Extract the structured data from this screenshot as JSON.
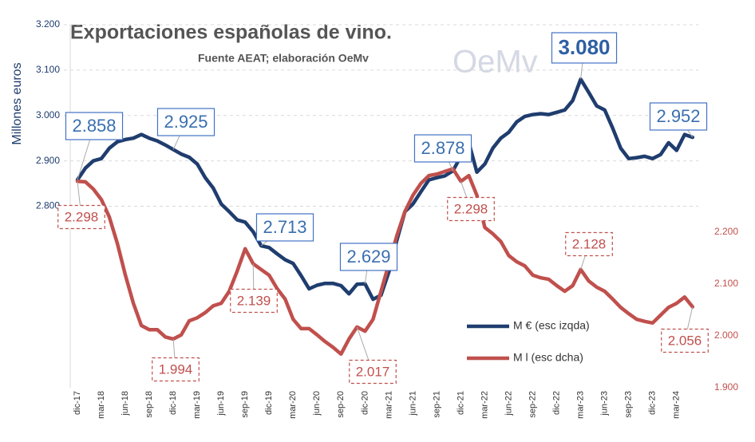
{
  "chart_data": {
    "type": "line",
    "title": "Exportaciones  españolas de vino.",
    "subtitle": "Fuente AEAT; elaboración OeMv",
    "logo": "OeMv",
    "y_label": "Millones euros",
    "categories": [
      "dic-17",
      null,
      null,
      "mar-18",
      null,
      null,
      "jun-18",
      null,
      null,
      "sep-18",
      null,
      null,
      "dic-18",
      null,
      null,
      "mar-19",
      null,
      null,
      "jun-19",
      null,
      null,
      "sep-19",
      null,
      null,
      "dic-19",
      null,
      null,
      "mar-20",
      null,
      null,
      "jun-20",
      null,
      null,
      "sep-20",
      null,
      null,
      "dic-20",
      null,
      null,
      "mar-21",
      null,
      null,
      "jun-21",
      null,
      null,
      "sep-21",
      null,
      null,
      "dic-21",
      null,
      null,
      "mar-22",
      null,
      null,
      "jun-22",
      null,
      null,
      "sep-22",
      null,
      null,
      "dic-22",
      null,
      null,
      "mar-23",
      null,
      null,
      "jun-23",
      null,
      null,
      "sep-23",
      null,
      null,
      "dic-23",
      null,
      null,
      "mar-24",
      null,
      null
    ],
    "series": [
      {
        "name": "M € (esc izqda)",
        "color": "#1f3d6e",
        "axis": "y",
        "values": [
          2858,
          2884,
          2900,
          2905,
          2928,
          2942,
          2947,
          2950,
          2958,
          2950,
          2944,
          2935,
          2925,
          2915,
          2908,
          2893,
          2863,
          2840,
          2805,
          2788,
          2770,
          2765,
          2744,
          2713,
          2709,
          2695,
          2682,
          2674,
          2647,
          2618,
          2626,
          2630,
          2630,
          2625,
          2607,
          2628,
          2629,
          2595,
          2604,
          2656,
          2726,
          2788,
          2805,
          2832,
          2858,
          2863,
          2867,
          2878,
          2910,
          2940,
          2875,
          2893,
          2928,
          2950,
          2963,
          2986,
          2998,
          3002,
          3004,
          3002,
          3007,
          3012,
          3033,
          3080,
          3051,
          3021,
          3012,
          2972,
          2928,
          2905,
          2907,
          2910,
          2905,
          2914,
          2940,
          2923,
          2958,
          2952
        ],
        "value_labels": [
          "2.858",
          null,
          null,
          null,
          null,
          null,
          null,
          null,
          null,
          null,
          null,
          null,
          "2.925",
          null,
          null,
          null,
          null,
          null,
          null,
          null,
          null,
          null,
          null,
          "2.713",
          null,
          null,
          null,
          null,
          null,
          null,
          null,
          null,
          null,
          null,
          null,
          null,
          "2.629",
          null,
          null,
          null,
          null,
          null,
          null,
          null,
          null,
          null,
          null,
          "2.878",
          null,
          null,
          null,
          null,
          null,
          null,
          null,
          null,
          null,
          null,
          null,
          null,
          null,
          null,
          null,
          "3.080",
          null,
          null,
          null,
          null,
          null,
          null,
          null,
          null,
          null,
          null,
          null,
          null,
          null,
          "2.952"
        ]
      },
      {
        "name": "M l (esc dcha)",
        "color": "#c0504d",
        "axis": "y2",
        "values": [
          2298,
          2297,
          2283,
          2263,
          2229,
          2178,
          2117,
          2063,
          2020,
          2012,
          2012,
          1998,
          1994,
          2002,
          2029,
          2035,
          2045,
          2058,
          2063,
          2086,
          2125,
          2168,
          2139,
          2128,
          2117,
          2091,
          2071,
          2032,
          2014,
          2014,
          2002,
          1989,
          1978,
          1965,
          1994,
          2017,
          2009,
          2032,
          2086,
          2140,
          2194,
          2240,
          2271,
          2294,
          2309,
          2312,
          2317,
          2322,
          2298,
          2309,
          2271,
          2209,
          2197,
          2182,
          2155,
          2143,
          2135,
          2117,
          2112,
          2109,
          2097,
          2086,
          2097,
          2128,
          2106,
          2094,
          2086,
          2071,
          2055,
          2043,
          2032,
          2028,
          2025,
          2040,
          2055,
          2063,
          2075,
          2056
        ],
        "value_labels": [
          "2.298",
          null,
          null,
          null,
          null,
          null,
          null,
          null,
          null,
          null,
          null,
          null,
          "1.994",
          null,
          null,
          null,
          null,
          null,
          null,
          null,
          null,
          null,
          "2.139",
          null,
          null,
          null,
          null,
          null,
          null,
          null,
          null,
          null,
          null,
          null,
          null,
          "2.017",
          null,
          null,
          null,
          null,
          null,
          null,
          null,
          null,
          null,
          null,
          null,
          null,
          "2.298",
          null,
          null,
          null,
          null,
          null,
          null,
          null,
          null,
          null,
          null,
          null,
          null,
          null,
          null,
          "2.128",
          null,
          null,
          null,
          null,
          null,
          null,
          null,
          null,
          null,
          null,
          null,
          null,
          null,
          "2.056"
        ]
      }
    ],
    "ylim": [
      2400,
      3200
    ],
    "yticks": [
      {
        "value": 2800,
        "label": "2.800"
      },
      {
        "value": 2900,
        "label": "2.900"
      },
      {
        "value": 3000,
        "label": "3.000"
      },
      {
        "value": 3100,
        "label": "3.100"
      },
      {
        "value": 3200,
        "label": "3.200"
      }
    ],
    "y2lim": [
      1900,
      2600
    ],
    "y2ticks": [
      {
        "value": 1900,
        "label": "1.900"
      },
      {
        "value": 2000,
        "label": "2.000"
      },
      {
        "value": 2100,
        "label": "2.100"
      },
      {
        "value": 2200,
        "label": "2.200"
      }
    ],
    "grid": true,
    "legend": "lower right"
  }
}
